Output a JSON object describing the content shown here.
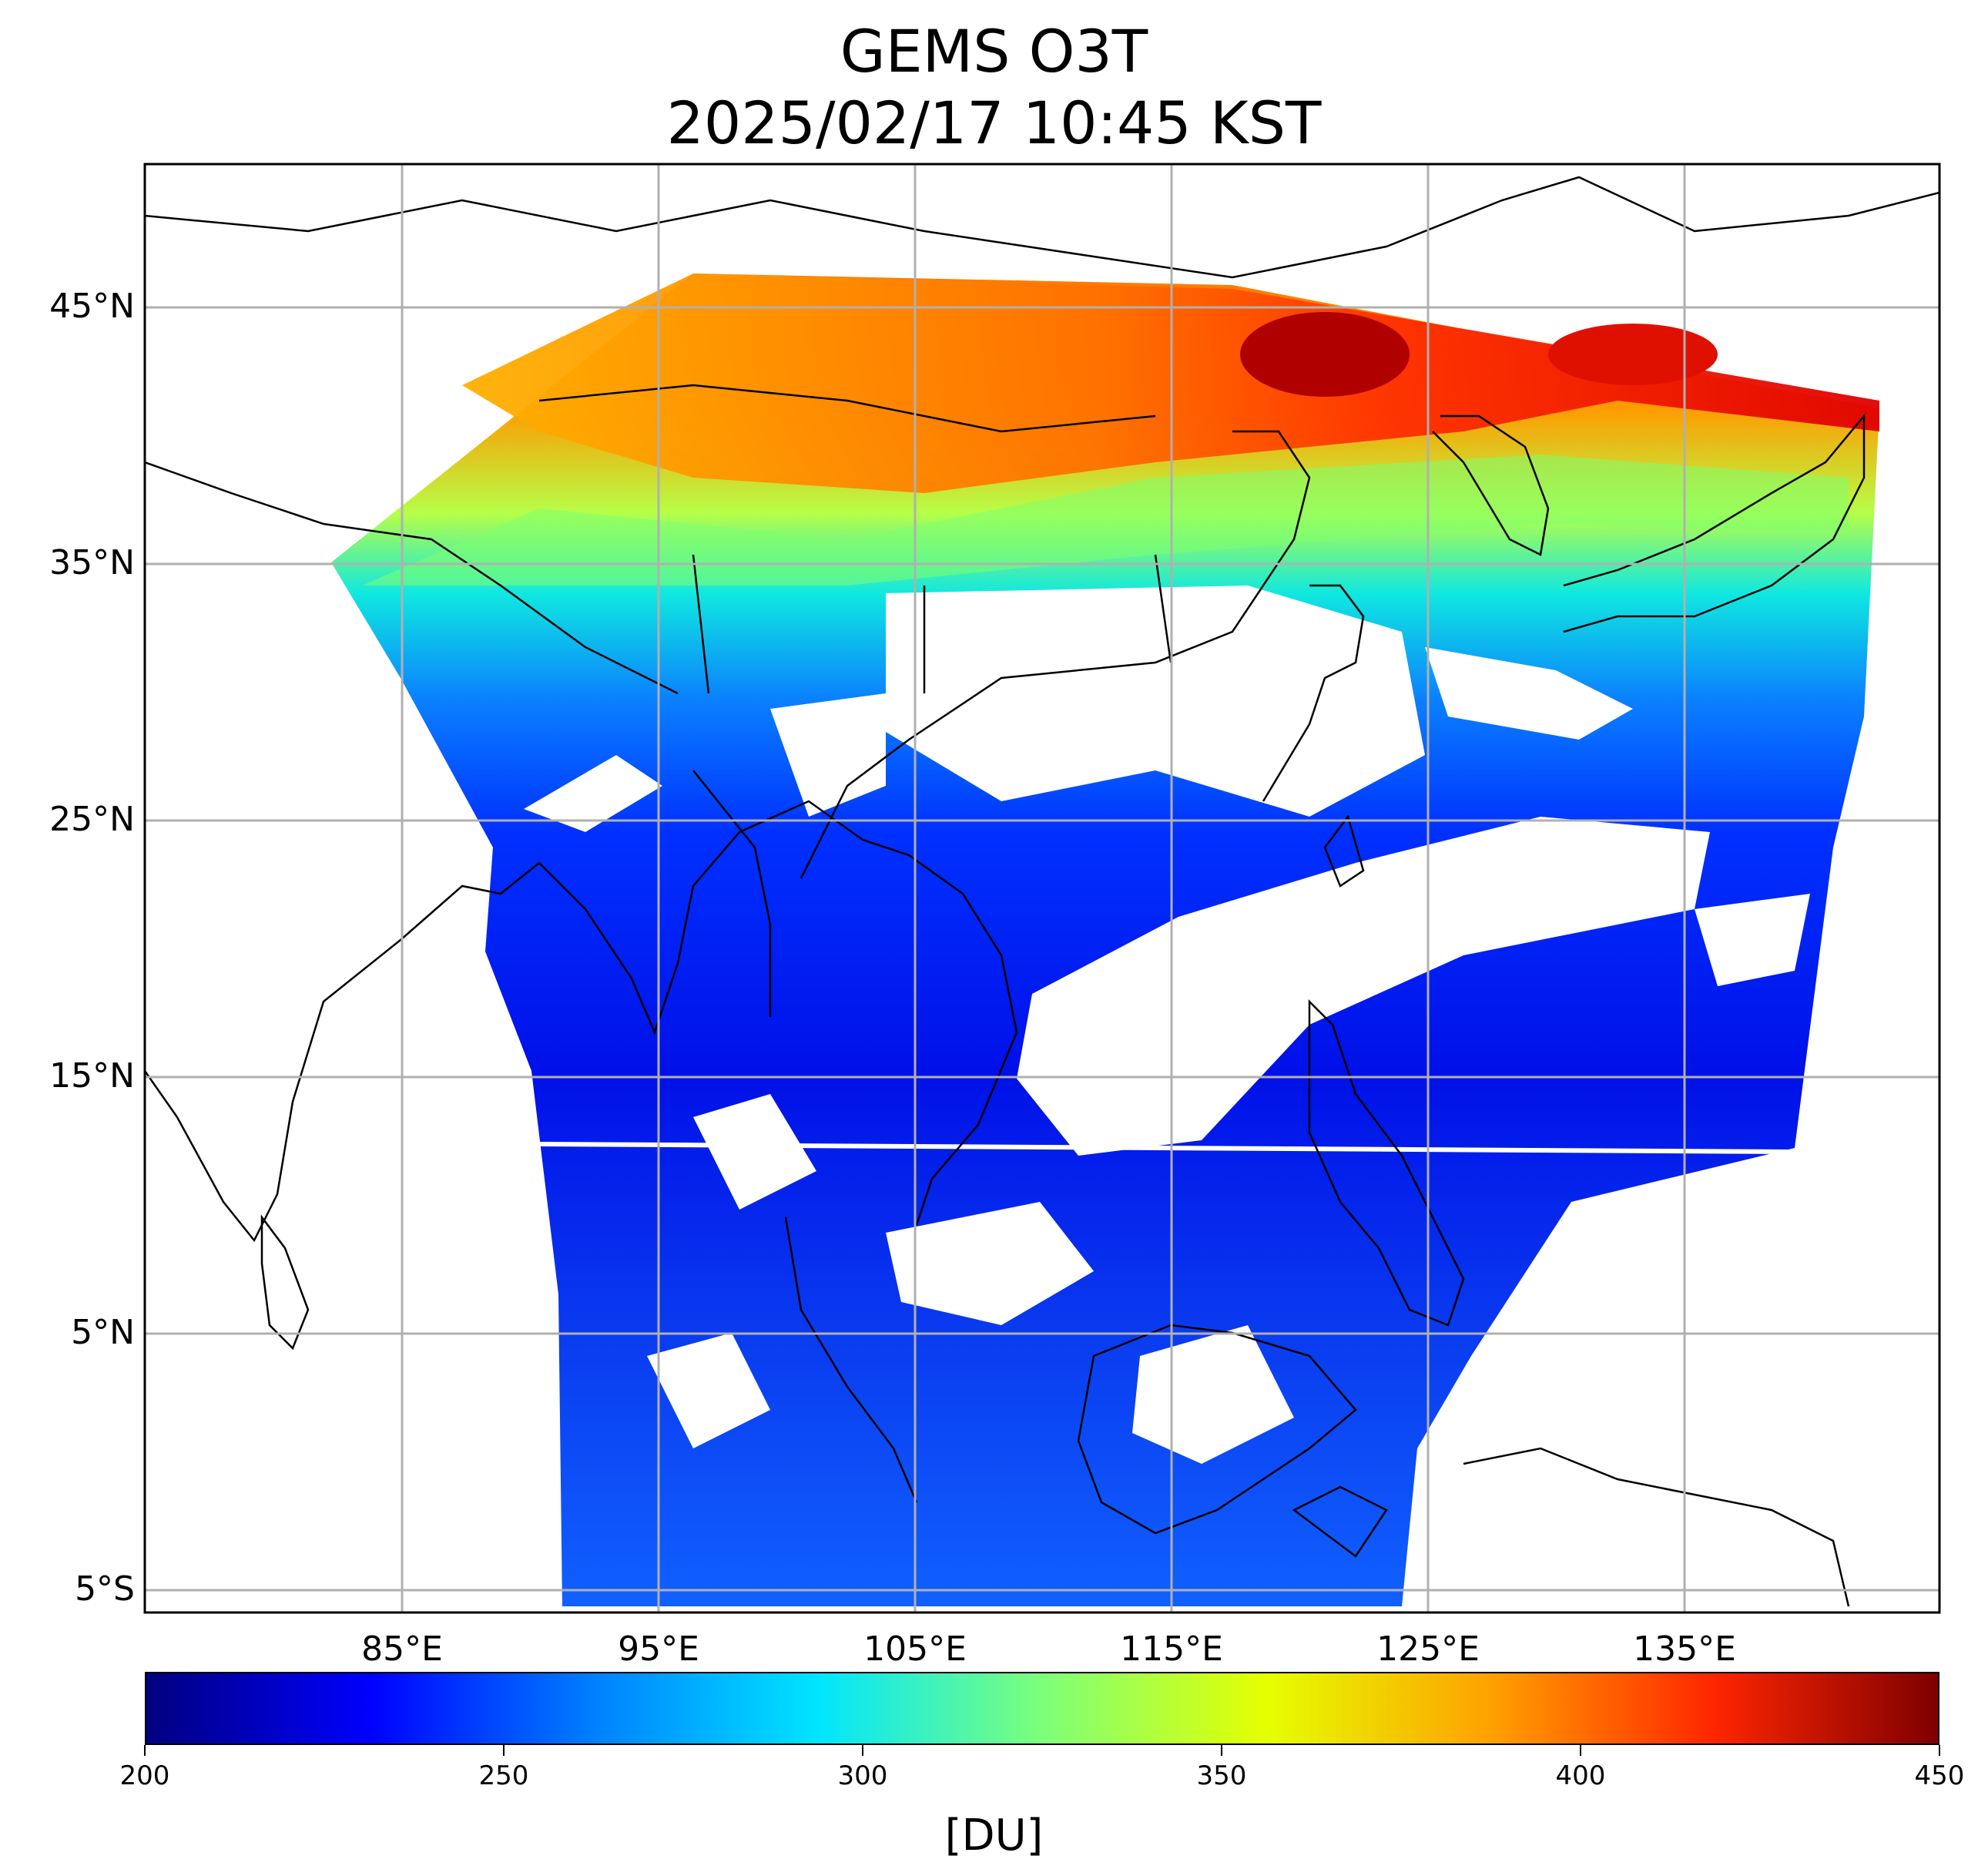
{
  "title": {
    "line1": "GEMS O3T",
    "line2": "2025/02/17 10:45 KST"
  },
  "map": {
    "lat_labels": [
      "45°N",
      "35°N",
      "25°N",
      "15°N",
      "5°N",
      "5°S"
    ],
    "lon_labels": [
      "85°E",
      "95°E",
      "105°E",
      "115°E",
      "125°E",
      "135°E"
    ],
    "grid": true
  },
  "colorbar": {
    "min": 200,
    "max": 450,
    "ticks": [
      "200",
      "250",
      "300",
      "350",
      "400",
      "450"
    ],
    "unit": "[DU]",
    "colors": [
      "#00007f",
      "#0000ff",
      "#0080ff",
      "#00e5ff",
      "#7dff7a",
      "#e5ff00",
      "#ffa100",
      "#ff2500",
      "#7f0000"
    ]
  }
}
